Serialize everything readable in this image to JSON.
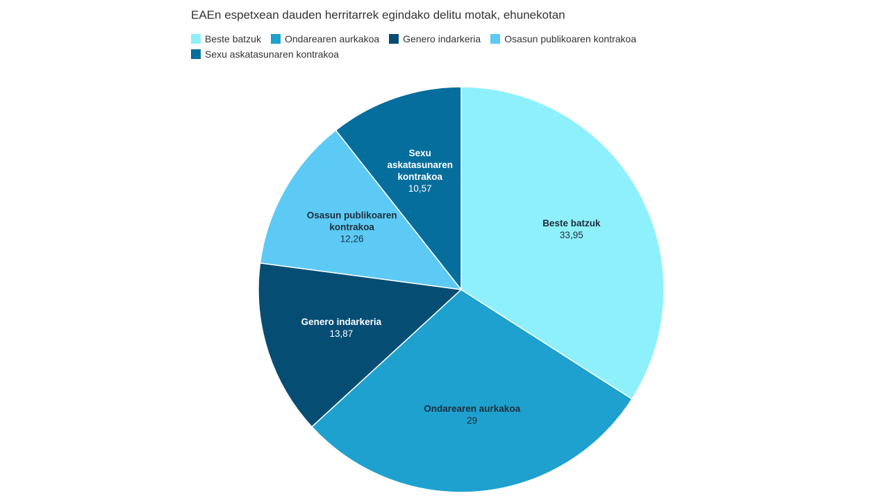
{
  "header": {
    "subtitle": "EAEn espetxean dauden herritarrek egindako delitu motak, ehunekotan"
  },
  "chart_data": {
    "type": "pie",
    "title": "",
    "start_angle_deg": 0,
    "direction": "clockwise",
    "legend_position": "top",
    "slices": [
      {
        "label": "Beste batzuk",
        "label_display": "Beste batzuk",
        "value": 33.95,
        "value_text": "33,95",
        "color": "#8ef0fb",
        "text_color": "#1f2d3a"
      },
      {
        "label": "Ondarearen aurkakoa",
        "label_display": "Ondarearen aurkakoa",
        "value": 29,
        "value_text": "29",
        "color": "#1ea1cf",
        "text_color": "#1f2d3a"
      },
      {
        "label": "Genero indarkeria",
        "label_display": "Genero indarkeria",
        "value": 13.87,
        "value_text": "13,87",
        "color": "#064d73",
        "text_color": "#ffffff"
      },
      {
        "label": "Osasun publikoaren kontrakoa",
        "label_display": "Osasun publikoaren\nkontrakoa",
        "value": 12.26,
        "value_text": "12,26",
        "color": "#5ccaf5",
        "text_color": "#1f2d3a"
      },
      {
        "label": "Sexu askatasunaren kontrakoa",
        "label_display": "Sexu\naskatasunaren\nkontrakoa",
        "value": 10.57,
        "value_text": "10,57",
        "color": "#066e9c",
        "text_color": "#ffffff"
      }
    ]
  }
}
